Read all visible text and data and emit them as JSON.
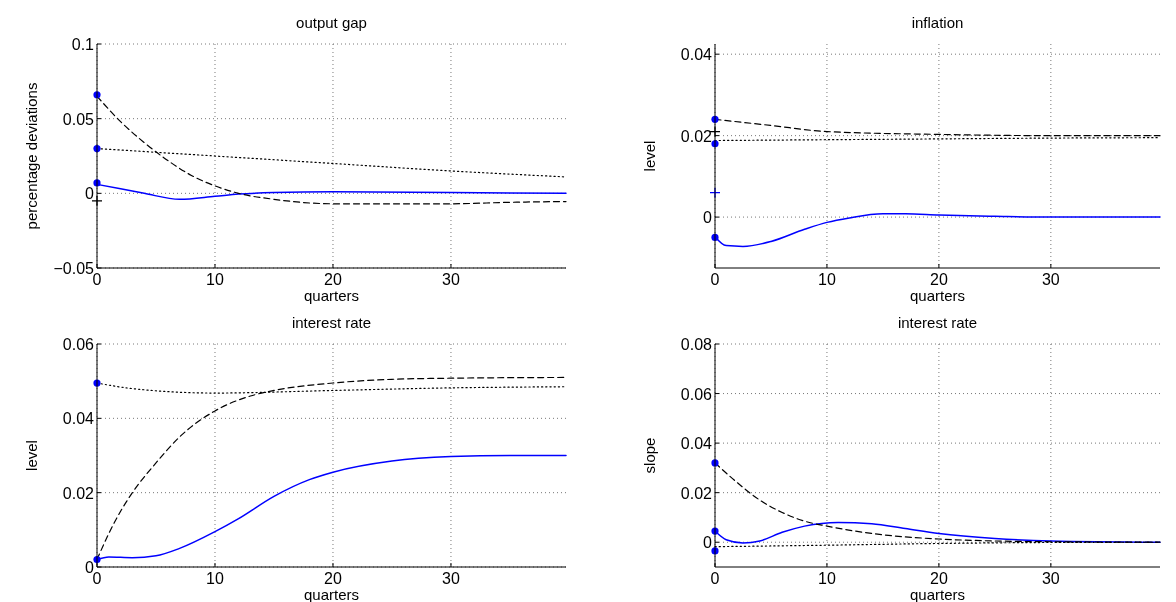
{
  "chart_data": [
    {
      "type": "line",
      "title": "output gap",
      "xlabel": "quarters",
      "ylabel": "percentage deviations",
      "xlim": [
        0,
        39.75
      ],
      "xticks": [
        0,
        10,
        20,
        30
      ],
      "ylim": [
        -0.05,
        0.1
      ],
      "yticks": [
        {
          "value": -0.05,
          "label": "−0.05"
        },
        0,
        0.05,
        0.1
      ],
      "grid": true,
      "series": [
        {
          "color": "#0000ff",
          "line_style": "solid",
          "x": [
            0,
            2,
            4,
            7,
            10,
            12,
            15,
            20,
            30,
            39.75
          ],
          "values": [
            0.006,
            0.003,
            0,
            -0.004,
            -0.002,
            -0.0005,
            0.0005,
            0.001,
            0.0005,
            0
          ]
        },
        {
          "color": "#000000",
          "line_style": "dashed",
          "x": [
            0,
            2,
            4,
            6,
            8,
            10,
            12,
            15,
            20,
            25,
            30,
            35,
            39.75
          ],
          "values": [
            0.065,
            0.048,
            0.034,
            0.022,
            0.012,
            0.005,
            0,
            -0.004,
            -0.007,
            -0.007,
            -0.007,
            -0.006,
            -0.0055
          ]
        },
        {
          "color": "#000000",
          "line_style": "dotted",
          "x": [
            0,
            10,
            20,
            30,
            39.75
          ],
          "values": [
            0.03,
            0.025,
            0.02,
            0.015,
            0.011
          ]
        },
        {
          "type": "scatter",
          "marker": "circle",
          "color": "#0000ff",
          "x": [
            0,
            0,
            0
          ],
          "values": [
            0.066,
            0.03,
            0.007
          ]
        },
        {
          "type": "scatter",
          "marker": "cross",
          "color": "#000000",
          "x": [
            0
          ],
          "values": [
            -0.005
          ]
        }
      ]
    },
    {
      "type": "line",
      "title": "inflation",
      "xlabel": "quarters",
      "ylabel": "level",
      "xlim": [
        0,
        39.75
      ],
      "xticks": [
        0,
        10,
        20,
        30
      ],
      "ylim": [
        -0.0125,
        0.0425
      ],
      "yticks": [
        0,
        0.02,
        0.04
      ],
      "grid": true,
      "series": [
        {
          "color": "#0000ff",
          "line_style": "solid",
          "x": [
            0,
            1,
            2.5,
            5,
            8,
            10,
            12,
            15,
            17,
            20,
            25,
            30,
            39.75
          ],
          "values": [
            -0.0048,
            -0.007,
            -0.0072,
            -0.006,
            -0.003,
            -0.0013,
            -0.0002,
            0.0008,
            0.0008,
            0.0005,
            0.0002,
            0,
            0
          ]
        },
        {
          "color": "#000000",
          "line_style": "dashed",
          "x": [
            0,
            5,
            10,
            20,
            30,
            39.75
          ],
          "values": [
            0.024,
            0.0225,
            0.021,
            0.0203,
            0.02,
            0.02
          ]
        },
        {
          "color": "#000000",
          "line_style": "dotted",
          "x": [
            0,
            10,
            20,
            30,
            39.75
          ],
          "values": [
            0.0188,
            0.019,
            0.0192,
            0.0194,
            0.0195
          ]
        },
        {
          "type": "scatter",
          "marker": "circle",
          "color": "#0000ff",
          "x": [
            0,
            0,
            0
          ],
          "values": [
            0.024,
            0.018,
            -0.005
          ]
        },
        {
          "type": "scatter",
          "marker": "cross",
          "color": "#000000",
          "x": [
            0
          ],
          "values": [
            0.021
          ]
        },
        {
          "type": "scatter",
          "marker": "cross",
          "color": "#0000ff",
          "x": [
            0
          ],
          "values": [
            0.006
          ]
        }
      ]
    },
    {
      "type": "line",
      "title": "interest rate",
      "xlabel": "quarters",
      "ylabel": "level",
      "xlim": [
        0,
        39.75
      ],
      "xticks": [
        0,
        10,
        20,
        30
      ],
      "ylim": [
        0,
        0.06
      ],
      "yticks": [
        0,
        0.02,
        0.04,
        0.06
      ],
      "grid": true,
      "series": [
        {
          "color": "#0000ff",
          "line_style": "solid",
          "x": [
            0,
            1,
            3,
            5,
            7,
            10,
            12,
            15,
            18,
            20,
            25,
            30,
            35,
            39.75
          ],
          "values": [
            0.002,
            0.0027,
            0.0025,
            0.003,
            0.005,
            0.0095,
            0.013,
            0.019,
            0.0235,
            0.0255,
            0.0285,
            0.0297,
            0.03,
            0.03
          ]
        },
        {
          "color": "#000000",
          "line_style": "dashed",
          "x": [
            0,
            1,
            2,
            3,
            5,
            7,
            10,
            13,
            15,
            20,
            25,
            30,
            39.75
          ],
          "values": [
            0.002,
            0.009,
            0.015,
            0.02,
            0.028,
            0.035,
            0.042,
            0.046,
            0.0475,
            0.0495,
            0.0505,
            0.0508,
            0.051
          ]
        },
        {
          "color": "#000000",
          "line_style": "dotted",
          "x": [
            0,
            3,
            10,
            20,
            30,
            39.75
          ],
          "values": [
            0.0495,
            0.048,
            0.0468,
            0.0475,
            0.0482,
            0.0485
          ]
        },
        {
          "type": "scatter",
          "marker": "circle",
          "color": "#0000ff",
          "x": [
            0,
            0
          ],
          "values": [
            0.0495,
            0.002
          ]
        }
      ]
    },
    {
      "type": "line",
      "title": "interest rate",
      "xlabel": "quarters",
      "ylabel": "slope",
      "xlim": [
        0,
        39.75
      ],
      "xticks": [
        0,
        10,
        20,
        30
      ],
      "ylim": [
        -0.01,
        0.08
      ],
      "yticks": [
        0,
        0.02,
        0.04,
        0.06,
        0.08
      ],
      "grid": true,
      "series": [
        {
          "color": "#0000ff",
          "line_style": "solid",
          "x": [
            0,
            1,
            2.5,
            4,
            6,
            8,
            11,
            14,
            17,
            20,
            25,
            30,
            39.75
          ],
          "values": [
            0.0045,
            0.001,
            -0.0003,
            0.0005,
            0.004,
            0.0065,
            0.008,
            0.0075,
            0.0055,
            0.0035,
            0.0015,
            0.0005,
            0
          ]
        },
        {
          "color": "#000000",
          "line_style": "dashed",
          "x": [
            0,
            2,
            4,
            6,
            8,
            10,
            15,
            20,
            25,
            30,
            39.75
          ],
          "values": [
            0.032,
            0.024,
            0.017,
            0.012,
            0.0085,
            0.0065,
            0.003,
            0.0013,
            0.0005,
            0.0002,
            0
          ]
        },
        {
          "color": "#000000",
          "line_style": "dotted",
          "x": [
            0,
            10,
            20,
            30,
            39.75
          ],
          "values": [
            -0.0018,
            -0.0012,
            -0.0005,
            -0.0001,
            0
          ]
        },
        {
          "type": "scatter",
          "marker": "circle",
          "color": "#0000ff",
          "x": [
            0,
            0,
            0
          ],
          "values": [
            0.032,
            0.0045,
            -0.0035
          ]
        }
      ]
    }
  ]
}
